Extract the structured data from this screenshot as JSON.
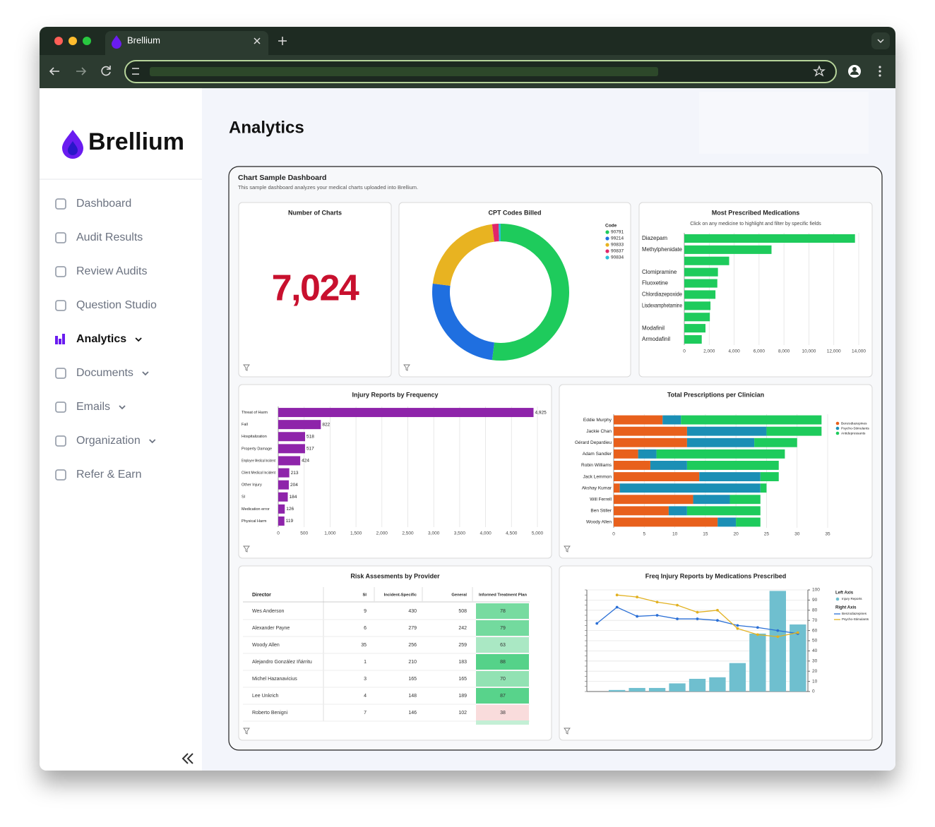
{
  "browser": {
    "tab_title": "Brellium"
  },
  "sidebar": {
    "brand": "Brellium",
    "active_index": 4,
    "nav": [
      {
        "label": "Dashboard",
        "expandable": false
      },
      {
        "label": "Audit Results",
        "expandable": false
      },
      {
        "label": "Review Audits",
        "expandable": false
      },
      {
        "label": "Question Studio",
        "expandable": false
      },
      {
        "label": "Analytics",
        "expandable": true
      },
      {
        "label": "Documents",
        "expandable": true
      },
      {
        "label": "Emails",
        "expandable": true
      },
      {
        "label": "Organization",
        "expandable": true
      },
      {
        "label": "Refer & Earn",
        "expandable": false
      }
    ]
  },
  "page": {
    "title": "Analytics"
  },
  "dashboard": {
    "title": "Chart Sample Dashboard",
    "subtitle": "This sample dashboard analyzes your medical charts uploaded into Brellium.",
    "charts": [
      {
        "type": "kpi",
        "title": "Number of Charts",
        "value": 7024,
        "value_label": "7,024",
        "color": "#c8102e"
      },
      {
        "type": "donut",
        "title": "CPT Codes Billed",
        "legend_title": "Code",
        "categories": [
          "90791",
          "99214",
          "90833",
          "90837",
          "90834"
        ],
        "values": [
          52,
          25,
          21,
          1.5,
          0.5
        ],
        "colors": [
          "#1ecb5c",
          "#1f6fe0",
          "#e8b321",
          "#e0266b",
          "#2bbfd9"
        ]
      },
      {
        "type": "hbar",
        "title": "Most Prescribed Medications",
        "subtitle": "Click on any medicine to highlight and filter by specific fields",
        "categories": [
          "Diazepam",
          "Methylphenidate",
          null,
          "Clomipramine",
          "Fluoxetine",
          "Chlordiazepoxide",
          "Lisdexamphetamine",
          null,
          "Modafinil",
          "Armodafinil"
        ],
        "values": [
          13700,
          7000,
          3600,
          2700,
          2650,
          2500,
          2100,
          2050,
          1700,
          1400
        ],
        "color": "#1ecb5c",
        "xlim": [
          0,
          14000
        ],
        "xticks": [
          0,
          {
            "value": 2000,
            "label": "2,000"
          },
          {
            "value": 4000,
            "label": "4,000"
          },
          {
            "value": 6000,
            "label": "6,000"
          },
          {
            "value": 8000,
            "label": "8,000"
          },
          {
            "value": 10000,
            "label": "10,000"
          },
          {
            "value": 12000,
            "label": "12,000"
          },
          {
            "value": 14000,
            "label": "14,000"
          }
        ],
        "grid": true
      },
      {
        "type": "hbar",
        "title": "Injury Reports by Frequency",
        "categories": [
          "Threat of Harm",
          "Fall",
          "Hospitalization",
          "Property Damage",
          "Employee Medical Incident",
          "Client Medical Incident",
          "Other Injury",
          "SI",
          "Medication error",
          "Physical Harm"
        ],
        "values": [
          4925,
          822,
          518,
          517,
          424,
          213,
          204,
          184,
          126,
          119
        ],
        "value_labels": [
          "4,925",
          "822",
          "518",
          "517",
          "424",
          "213",
          "204",
          "184",
          "126",
          "119"
        ],
        "color": "#8e24aa",
        "xlim": [
          0,
          5000
        ],
        "xticks": [
          0,
          500,
          {
            "value": 1000,
            "label": "1,000"
          },
          {
            "value": 1500,
            "label": "1,500"
          },
          {
            "value": 2000,
            "label": "2,000"
          },
          {
            "value": 2500,
            "label": "2,500"
          },
          {
            "value": 3000,
            "label": "3,000"
          },
          {
            "value": 3500,
            "label": "3,500"
          },
          {
            "value": 4000,
            "label": "4,000"
          },
          {
            "value": 4500,
            "label": "4,500"
          },
          {
            "value": 5000,
            "label": "5,000"
          }
        ],
        "grid": true
      },
      {
        "type": "stacked_hbar",
        "title": "Total Prescriptions per Clinician",
        "categories": [
          "Eddie Murphy",
          "Jackie Chan",
          "Gérard Depardieu",
          "Adam Sandler",
          "Robin Williams",
          "Jack Lemmon",
          "Akshay Kumar",
          "Will Ferrell",
          "Ben Stiller",
          "Woody Allen"
        ],
        "series": [
          {
            "name": "Benzodiazepines",
            "color": "#e8601c",
            "values": [
              8,
              12,
              12,
              4,
              6,
              14,
              1,
              13,
              9,
              17
            ]
          },
          {
            "name": "Psycho-Stimulants",
            "color": "#1b8fb5",
            "values": [
              3,
              13,
              11,
              3,
              6,
              10,
              23,
              6,
              3,
              3
            ]
          },
          {
            "name": "Antidepressants",
            "color": "#1ecb5c",
            "values": [
              23,
              9,
              7,
              21,
              15,
              3,
              1,
              5,
              12,
              4
            ]
          }
        ],
        "xlim": [
          0,
          35
        ],
        "xticks": [
          0,
          5,
          10,
          15,
          20,
          25,
          30,
          35
        ],
        "grid": true,
        "legend": "right"
      },
      {
        "type": "table",
        "title": "Risk Assesments by Provider",
        "columns": [
          "Director",
          "SI",
          "Incident-Specific",
          "General",
          "Informed Treatment Plan"
        ],
        "rows": [
          [
            "Wes Anderson",
            9,
            430,
            508,
            78
          ],
          [
            "Alexander Payne",
            6,
            279,
            242,
            79
          ],
          [
            "Woody Allen",
            35,
            256,
            259,
            63
          ],
          [
            "Alejandro González Iñárritu",
            1,
            210,
            183,
            88
          ],
          [
            "Michel Hazanavicius",
            3,
            165,
            165,
            70
          ],
          [
            "Lee Unkrich",
            4,
            148,
            189,
            87
          ],
          [
            "Roberto Benigni",
            7,
            146,
            102,
            38
          ]
        ],
        "heatmap_column": 4
      },
      {
        "type": "combo",
        "title": "Freq Injury Reports by Medications Prescribed",
        "categories": [
          null,
          null,
          null,
          null,
          null,
          null,
          null,
          null,
          null,
          null,
          null
        ],
        "legend_groups": [
          "Left Axis",
          "Right Axis"
        ],
        "series": [
          {
            "name": "Injury Reports",
            "kind": "bar",
            "group": 0,
            "color": "#6fbfcf",
            "values": [
              null,
              1.5,
              3.5,
              3.5,
              8,
              12.5,
              14,
              28,
              57,
              99,
              66
            ]
          },
          {
            "name": "Benzodiazepines",
            "kind": "line",
            "group": 1,
            "color": "#2a6fd6",
            "values": [
              67,
              83,
              74,
              75,
              71.5,
              71.5,
              70,
              65,
              63,
              60,
              57
            ]
          },
          {
            "name": "Psycho-Stimulants",
            "kind": "line",
            "group": 1,
            "color": "#e2b120",
            "values": [
              null,
              95,
              93,
              88,
              85,
              78,
              80,
              62,
              56,
              54,
              58
            ]
          }
        ],
        "ylim": [
          0,
          100
        ],
        "yticks": [
          0,
          10,
          20,
          30,
          40,
          50,
          60,
          70,
          80,
          90,
          100
        ],
        "grid": true
      }
    ]
  }
}
